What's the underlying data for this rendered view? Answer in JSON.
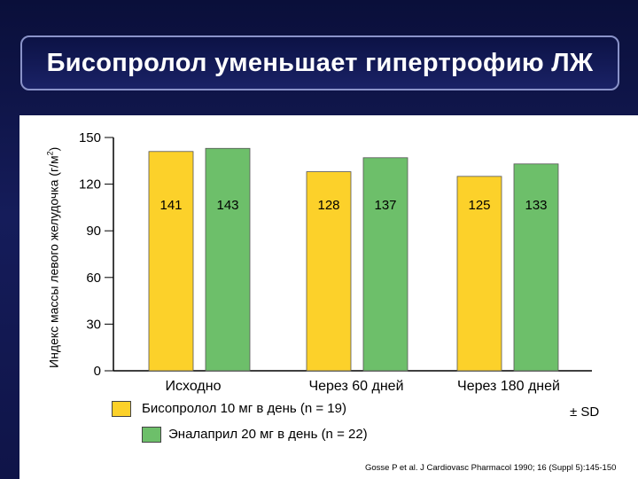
{
  "title": "Бисопролол уменьшает гипертрофию ЛЖ",
  "chart_data": {
    "type": "bar",
    "categories": [
      "Исходно",
      "Через 60 дней",
      "Через 180 дней"
    ],
    "ylabel": "Индекс массы левого желудочка (г/м2)",
    "ylabel_main": "Индекс массы левого желудочка (г/м",
    "ylabel_sup": "2",
    "ylabel_close": ")",
    "ylim": [
      0,
      150
    ],
    "yticks": [
      0,
      30,
      60,
      90,
      120,
      150
    ],
    "series": [
      {
        "name": "Бисопролол 10 мг в день  (n = 19)",
        "color": "#fcd12a",
        "values": [
          141,
          128,
          125
        ]
      },
      {
        "name": "Эналаприл 20 мг в день  (n = 22)",
        "color": "#6dbf6a",
        "values": [
          143,
          137,
          133
        ]
      }
    ],
    "legend_placement": "bottom",
    "grid": false
  },
  "sd_label": "± SD",
  "citation": "Gosse P et al. J Cardiovasc Pharmacol 1990; 16 (Suppl 5):145-150"
}
